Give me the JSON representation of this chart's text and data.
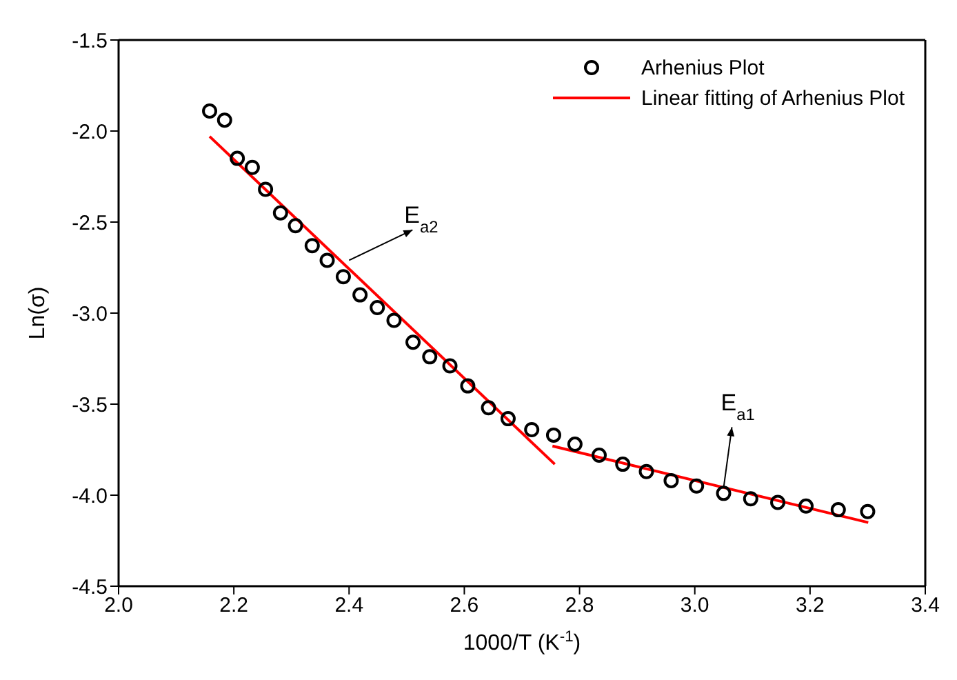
{
  "chart_data": {
    "type": "scatter",
    "xlabel": "1000/T (K$^{-1}$)",
    "ylabel": "Ln(σ)",
    "xlim": [
      2.0,
      3.4
    ],
    "xticks": [
      {
        "value": 2,
        "label": "2.0"
      },
      2.2,
      2.4,
      2.6,
      2.8,
      {
        "value": 3,
        "label": "3.0"
      },
      3.2,
      3.4
    ],
    "ylim": [
      -4.5,
      -1.5
    ],
    "yticks": [
      -4.5,
      {
        "value": -4,
        "label": "-4.0"
      },
      -3.5,
      {
        "value": -3,
        "label": "-3.0"
      },
      -2.5,
      {
        "value": -2,
        "label": "-2.0"
      },
      -1.5
    ],
    "legend": "top right",
    "marker": "circle",
    "annotations": [
      {
        "text": "E$_{a2}$",
        "x": 2.4,
        "y": -2.71
      },
      {
        "text": "E$_{a1}$",
        "x": 3.05,
        "y": -3.96
      }
    ],
    "series": [
      {
        "name": "Arhenius Plot",
        "color": "#000000",
        "x": [
          2.158,
          2.184,
          2.206,
          2.232,
          2.255,
          2.281,
          2.307,
          2.336,
          2.362,
          2.39,
          2.419,
          2.449,
          2.478,
          2.511,
          2.54,
          2.575,
          2.606,
          2.642,
          2.676,
          2.717,
          2.755,
          2.792,
          2.834,
          2.875,
          2.916,
          2.959,
          3.003,
          3.05,
          3.097,
          3.144,
          3.193,
          3.249,
          3.3
        ],
        "values": [
          -1.89,
          -1.94,
          -2.15,
          -2.2,
          -2.32,
          -2.45,
          -2.52,
          -2.63,
          -2.71,
          -2.8,
          -2.9,
          -2.97,
          -3.04,
          -3.16,
          -3.24,
          -3.29,
          -3.4,
          -3.52,
          -3.58,
          -3.64,
          -3.67,
          -3.72,
          -3.78,
          -3.83,
          -3.87,
          -3.92,
          -3.95,
          -3.99,
          -4.02,
          -4.04,
          -4.06,
          -4.08,
          -4.09
        ]
      },
      {
        "name": "Linear fitting of Arhenius Plot",
        "type": "line",
        "color": "#ff0000",
        "marker": "none",
        "x": [
          2.158,
          2.757
        ],
        "values": [
          -2.03,
          -3.83
        ]
      },
      {
        "type": "line",
        "color": "#ff0000",
        "marker": "none",
        "x": [
          2.753,
          3.301
        ],
        "values": [
          -3.73,
          -4.15
        ]
      }
    ]
  }
}
